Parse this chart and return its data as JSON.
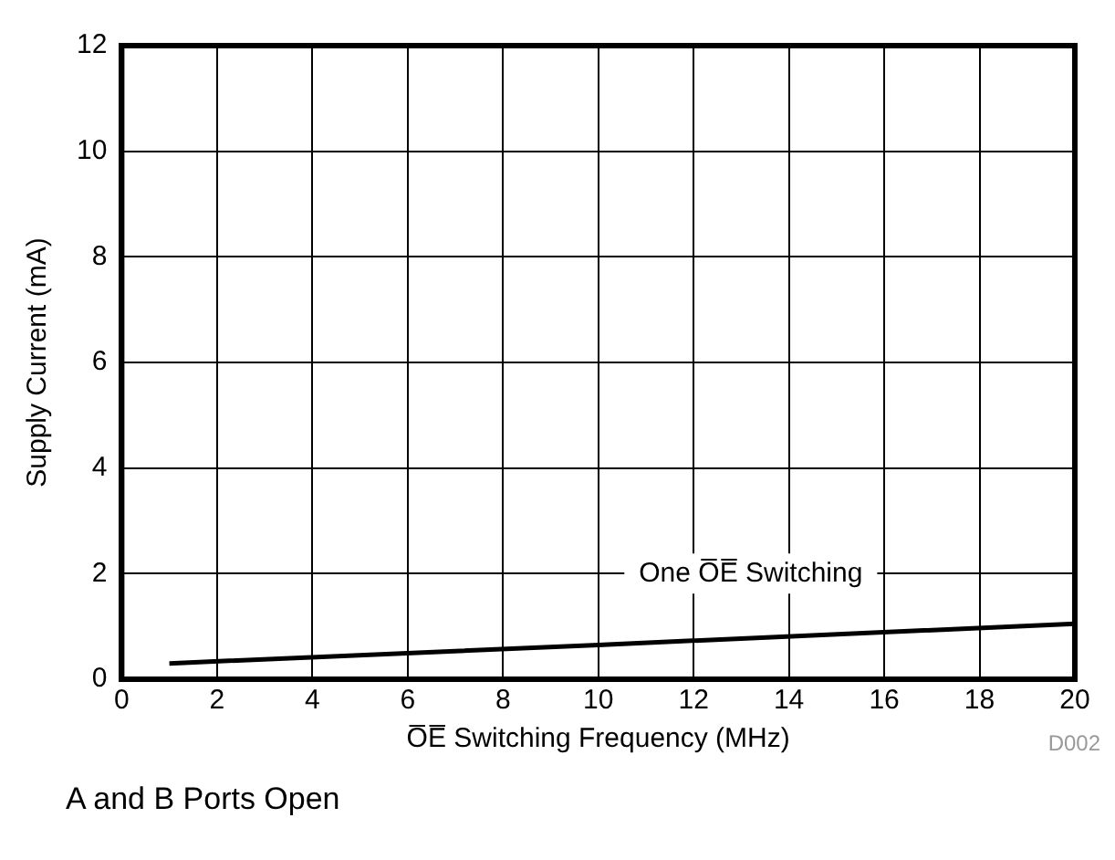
{
  "chart_data": {
    "type": "line",
    "xlabel": "O̅E̅ Switching Frequency (MHz)",
    "ylabel": "Supply Current (mA)",
    "x": [
      1,
      10,
      20
    ],
    "series": [
      {
        "name": "One O̅E̅ Switching",
        "color": "#000000",
        "values": [
          0.3,
          0.65,
          1.05
        ]
      }
    ],
    "xlim": [
      0,
      20
    ],
    "xticks": [
      0,
      2,
      4,
      6,
      8,
      10,
      12,
      14,
      16,
      18,
      20
    ],
    "ylim": [
      0,
      12
    ],
    "yticks": [
      0,
      2,
      4,
      6,
      8,
      10,
      12
    ],
    "grid": true,
    "legend": false,
    "marker": "none",
    "line_style": "solid",
    "annotations": [
      "D002",
      "A and B Ports Open"
    ]
  }
}
